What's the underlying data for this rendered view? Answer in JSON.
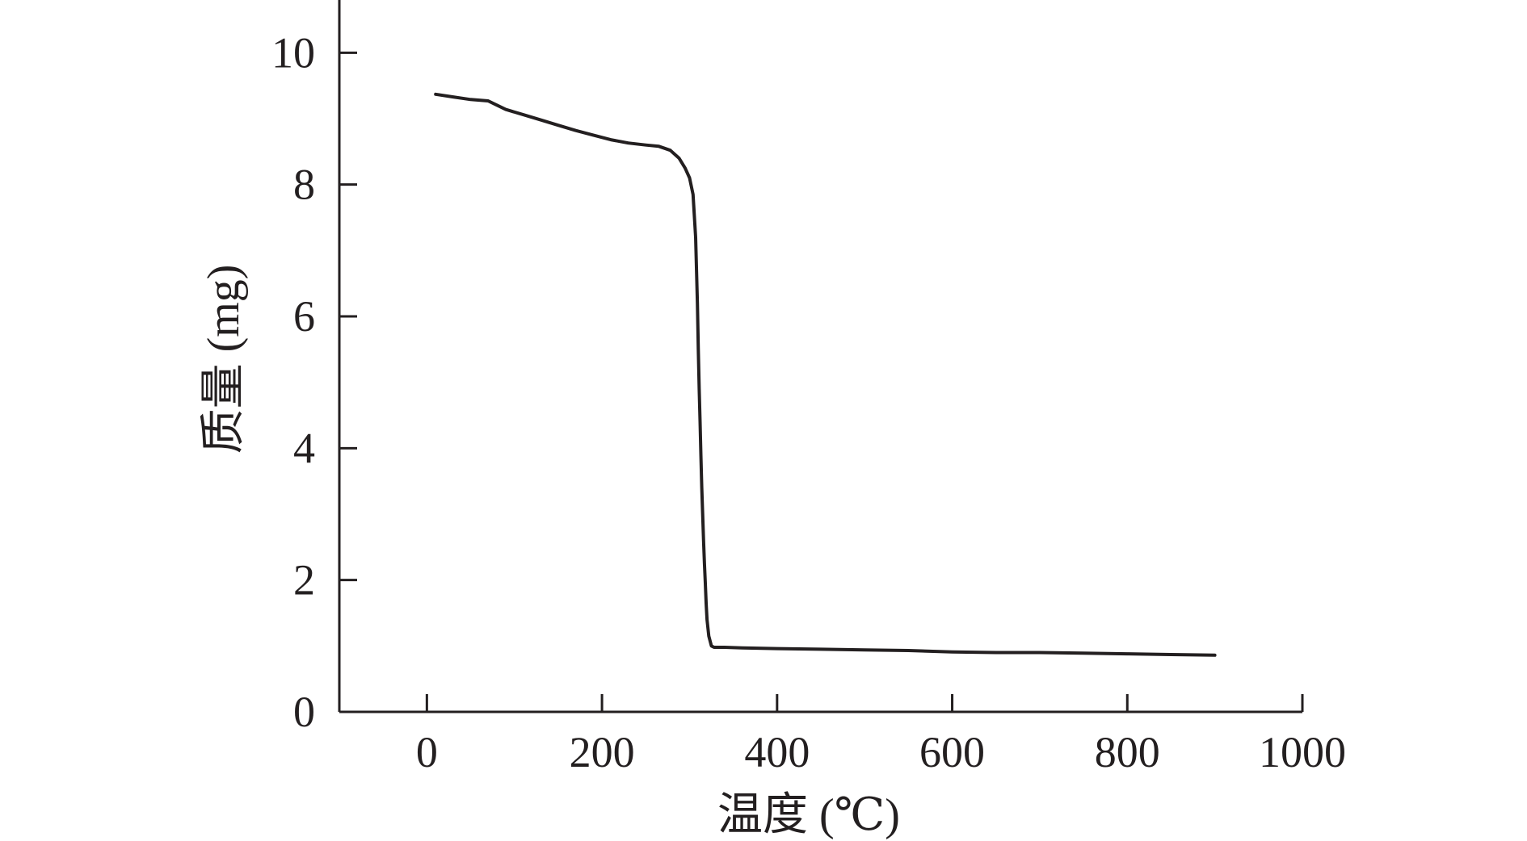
{
  "chart_data": {
    "type": "line",
    "xlabel": "温度 (℃)",
    "ylabel": "质量 (mg)",
    "xlim": [
      -100,
      1000
    ],
    "ylim": [
      0,
      10.8
    ],
    "xticks": [
      0,
      200,
      400,
      600,
      800,
      1000
    ],
    "yticks": [
      0,
      2,
      4,
      6,
      8,
      10
    ],
    "grid": false,
    "colors": {
      "line": "#231f20",
      "axis": "#231f20"
    },
    "series": [
      {
        "x": [
          10,
          30,
          50,
          70,
          90,
          110,
          130,
          150,
          170,
          190,
          210,
          230,
          250,
          265,
          278,
          288,
          295,
          300,
          304,
          307,
          309,
          310,
          311,
          312,
          313,
          314,
          315,
          316,
          317,
          318,
          319,
          320,
          322,
          325,
          328,
          340,
          360,
          400,
          450,
          500,
          550,
          600,
          650,
          700,
          750,
          800,
          850,
          900
        ],
        "y": [
          9.37,
          9.33,
          9.29,
          9.27,
          9.14,
          9.06,
          8.98,
          8.9,
          8.82,
          8.75,
          8.68,
          8.63,
          8.6,
          8.58,
          8.52,
          8.4,
          8.25,
          8.1,
          7.85,
          7.2,
          6.2,
          5.5,
          4.9,
          4.4,
          3.9,
          3.4,
          3.0,
          2.6,
          2.25,
          1.95,
          1.65,
          1.4,
          1.15,
          1.0,
          0.98,
          0.98,
          0.97,
          0.96,
          0.95,
          0.94,
          0.93,
          0.91,
          0.9,
          0.9,
          0.89,
          0.88,
          0.87,
          0.86
        ]
      }
    ]
  }
}
